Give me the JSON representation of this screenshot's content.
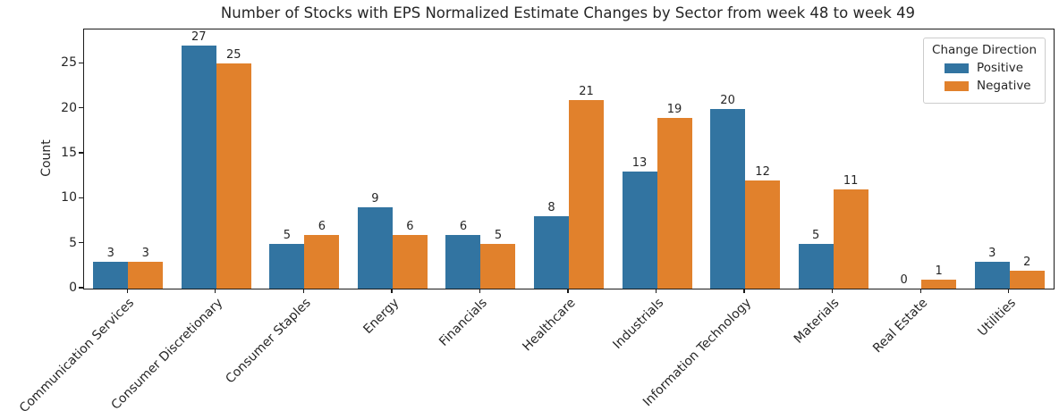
{
  "chart_data": {
    "type": "bar",
    "title": "Number of Stocks with EPS Normalized Estimate Changes by Sector from week 48 to week 49",
    "xlabel": "",
    "ylabel": "Count",
    "categories": [
      "Communication Services",
      "Consumer Discretionary",
      "Consumer Staples",
      "Energy",
      "Financials",
      "Healthcare",
      "Industrials",
      "Information Technology",
      "Materials",
      "Real Estate",
      "Utilities"
    ],
    "series": [
      {
        "name": "Positive",
        "color": "#3274a1",
        "values": [
          3,
          27,
          5,
          9,
          6,
          8,
          13,
          20,
          5,
          0,
          3
        ]
      },
      {
        "name": "Negative",
        "color": "#e1812c",
        "values": [
          3,
          25,
          6,
          6,
          5,
          21,
          19,
          12,
          11,
          1,
          2
        ]
      }
    ],
    "ylim": [
      0,
      28.8
    ],
    "yticks": [
      0,
      5,
      10,
      15,
      20,
      25
    ],
    "bar_value_labels": true,
    "grid": false,
    "legend": {
      "title": "Change Direction",
      "position": "upper right"
    },
    "colors": {
      "spine": "#1a1a1a",
      "text": "#262626",
      "background": "#ffffff"
    }
  }
}
